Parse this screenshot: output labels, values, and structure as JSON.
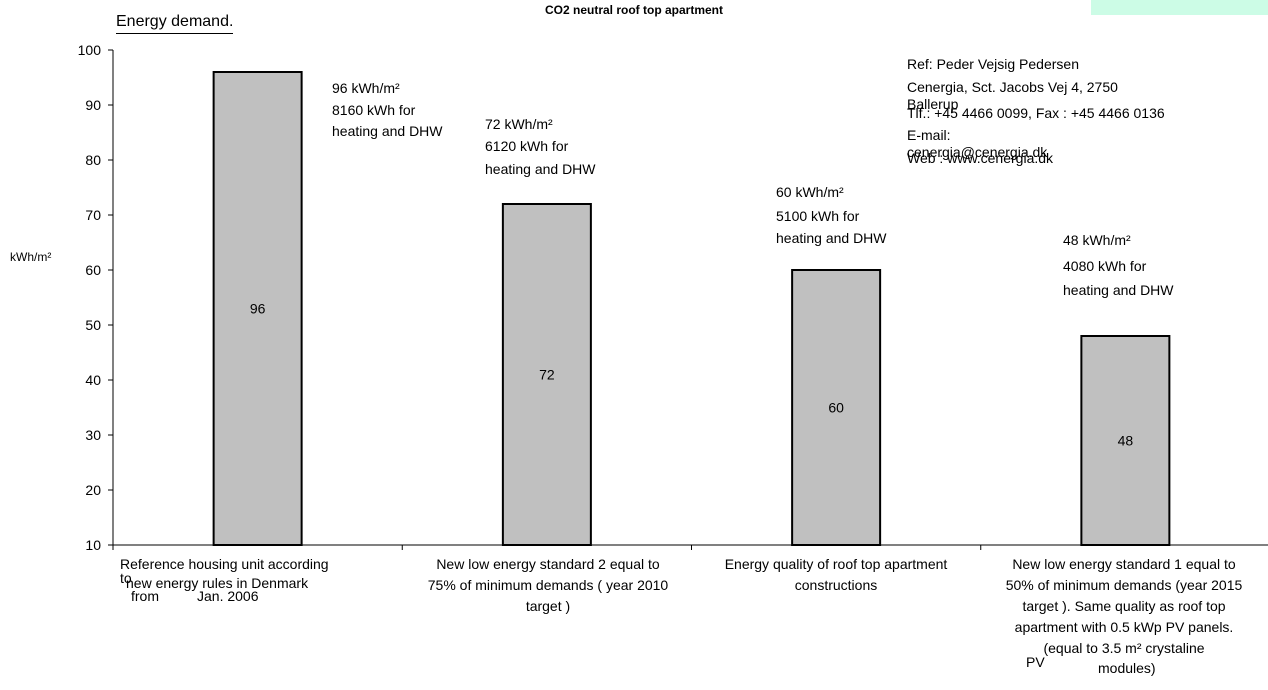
{
  "chart_data": {
    "type": "bar",
    "title": "CO2 neutral roof top apartment",
    "subtitle": "Energy demand.",
    "ylabel": "kWh/m²",
    "xlabel": "",
    "ylim": [
      10,
      100
    ],
    "yticks": [
      10,
      20,
      30,
      40,
      50,
      60,
      70,
      80,
      90,
      100
    ],
    "grid": false,
    "legend": "none",
    "categories": [
      "Reference housing unit according to new energy rules in Denmark from Jan. 2006",
      "New low energy standard 2 equal to 75% of minimum demands ( year 2010 target )",
      "Energy quality of roof top apartment constructions",
      "New low energy standard 1 equal to 50% of minimum demands (year 2015 target ). Same quality as roof top apartment with 0.5 kWp PV panels. (equal to 3.5 m² crystaline PV modules)"
    ],
    "values": [
      96,
      72,
      60,
      48
    ],
    "data_labels": [
      "96",
      "72",
      "60",
      "48"
    ],
    "bar_color": "#c0c0c0",
    "bar_edge_color": "#000000"
  },
  "category_lines": [
    [
      "Reference housing unit according",
      "to",
      "new energy rules in Denmark",
      "from",
      "Jan. 2006"
    ],
    [
      "New low energy standard 2 equal to",
      "75% of minimum demands ( year 2010",
      "target )"
    ],
    [
      "Energy quality of roof top apartment",
      "constructions"
    ],
    [
      "New low energy standard 1 equal to",
      "50% of minimum demands (year 2015",
      "target ). Same quality as roof top",
      "apartment with 0.5 kWp PV panels.",
      "(equal to 3.5 m² crystaline",
      "PV",
      "modules)"
    ]
  ],
  "annotations": [
    {
      "kwh_m2": "96 kWh/m²",
      "kwh_total": "8160 kWh for",
      "use": "heating and DHW"
    },
    {
      "kwh_m2": "72 kWh/m²",
      "kwh_total": "6120 kWh for",
      "use": "heating and DHW"
    },
    {
      "kwh_m2": "60 kWh/m²",
      "kwh_total": "5100 kWh for",
      "use": "heating and DHW"
    },
    {
      "kwh_m2": "48 kWh/m²",
      "kwh_total": "4080 kWh for",
      "use": "heating and DHW"
    }
  ],
  "reference": {
    "line1": "Ref:  Peder Vejsig Pedersen",
    "line2": "Cenergia, Sct. Jacobs Vej 4, 2750",
    "line3": "Ballerup",
    "line4": "Tlf.: +45 4466 0099, Fax : +45 4466 0136",
    "line5": "E-mail:",
    "line6": "cenergia@cenergia.dk",
    "line7": "Web : www.cenergia.dk"
  },
  "colors": {
    "background": "#ffffff",
    "corner_box": "#ccfce6"
  }
}
